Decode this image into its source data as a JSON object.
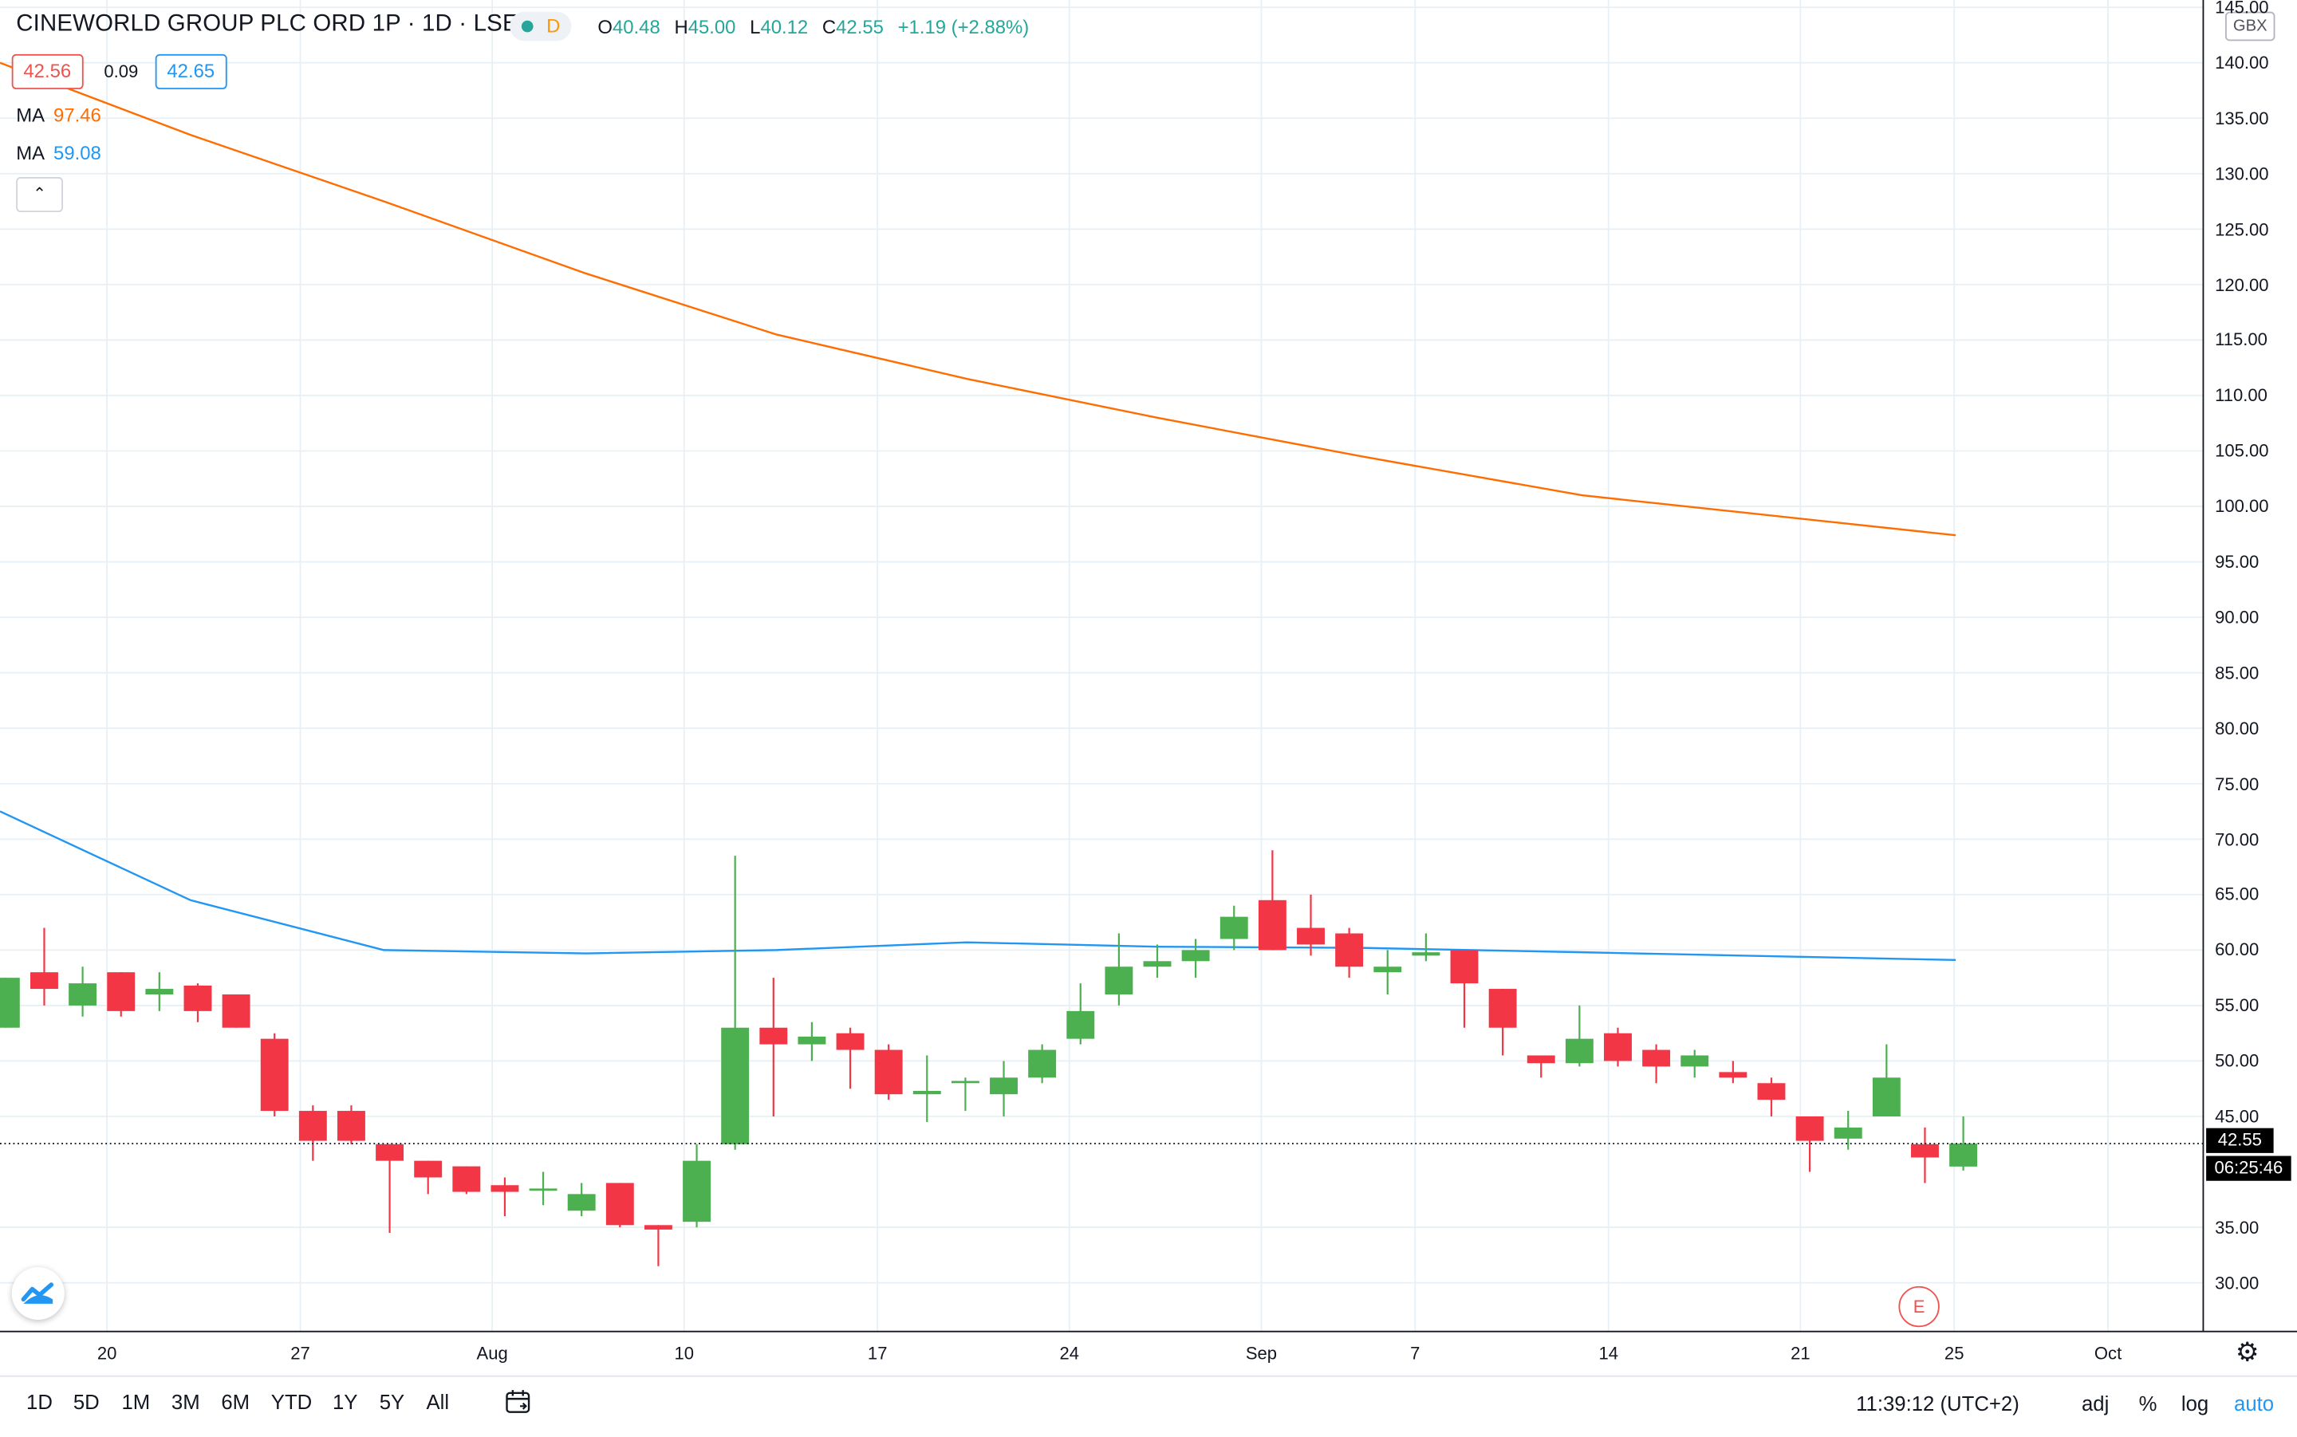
{
  "header": {
    "title": "CINEWORLD GROUP PLC ORD 1P · 1D · LSE",
    "badge_letter": "D",
    "ohlc": {
      "o_label": "O",
      "o_value": "40.48",
      "h_label": "H",
      "h_value": "45.00",
      "l_label": "L",
      "l_value": "40.12",
      "c_label": "C",
      "c_value": "42.55",
      "change": "+1.19 (+2.88%)"
    },
    "bid": "42.56",
    "spread": "0.09",
    "ask": "42.65",
    "indicators": [
      {
        "label": "MA",
        "value": "97.46",
        "color": "#ff6d00"
      },
      {
        "label": "MA",
        "value": "59.08",
        "color": "#2196f3"
      }
    ],
    "collapse_glyph": "⌃"
  },
  "price_axis": {
    "currency": "GBX",
    "ticks": [
      "145.00",
      "140.00",
      "135.00",
      "130.00",
      "125.00",
      "120.00",
      "115.00",
      "110.00",
      "105.00",
      "100.00",
      "95.00",
      "90.00",
      "85.00",
      "80.00",
      "75.00",
      "70.00",
      "65.00",
      "60.00",
      "55.00",
      "50.00",
      "45.00",
      "35.00",
      "30.00"
    ],
    "last_price": "42.55",
    "countdown": "06:25:46"
  },
  "time_axis": {
    "labels": [
      "20",
      "27",
      "Aug",
      "10",
      "17",
      "24",
      "Sep",
      "7",
      "14",
      "21",
      "25",
      "Oct"
    ]
  },
  "markers": {
    "earnings": "E"
  },
  "bottom_bar": {
    "ranges": [
      "1D",
      "5D",
      "1M",
      "3M",
      "6M",
      "YTD",
      "1Y",
      "5Y",
      "All"
    ],
    "clock": "11:39:12 (UTC+2)",
    "options": [
      "adj",
      "%",
      "log",
      "auto"
    ]
  },
  "colors": {
    "up": "#4caf50",
    "down": "#f23645",
    "ma_long": "#ff6d00",
    "ma_short": "#2196f3",
    "grid": "#e8f0f5"
  },
  "chart_data": {
    "type": "candlestick",
    "title": "CINEWORLD GROUP PLC ORD 1P · 1D · LSE",
    "ylim": [
      25.5,
      146
    ],
    "y_ticks": [
      145,
      140,
      135,
      130,
      125,
      120,
      115,
      110,
      105,
      100,
      95,
      90,
      85,
      80,
      75,
      70,
      65,
      60,
      55,
      50,
      45,
      35,
      30
    ],
    "x_labels": [
      "20",
      "27",
      "Aug",
      "10",
      "17",
      "24",
      "Sep",
      "7",
      "14",
      "21",
      "25",
      "Oct"
    ],
    "candles": [
      {
        "o": 53.0,
        "h": 57.5,
        "l": 53.0,
        "c": 57.5
      },
      {
        "o": 58.0,
        "h": 62.0,
        "l": 55.0,
        "c": 56.5
      },
      {
        "o": 55.0,
        "h": 58.5,
        "l": 54.0,
        "c": 57.0
      },
      {
        "o": 58.0,
        "h": 58.0,
        "l": 54.0,
        "c": 54.5
      },
      {
        "o": 56.0,
        "h": 58.0,
        "l": 54.5,
        "c": 56.5
      },
      {
        "o": 56.8,
        "h": 57.0,
        "l": 53.5,
        "c": 54.5
      },
      {
        "o": 56.0,
        "h": 56.0,
        "l": 53.0,
        "c": 53.0
      },
      {
        "o": 52.0,
        "h": 52.5,
        "l": 45.0,
        "c": 45.5
      },
      {
        "o": 45.5,
        "h": 46.0,
        "l": 41.0,
        "c": 42.8
      },
      {
        "o": 45.5,
        "h": 46.0,
        "l": 42.5,
        "c": 42.8
      },
      {
        "o": 42.5,
        "h": 42.5,
        "l": 34.5,
        "c": 41.0
      },
      {
        "o": 41.0,
        "h": 41.0,
        "l": 38.0,
        "c": 39.5
      },
      {
        "o": 40.5,
        "h": 40.5,
        "l": 38.0,
        "c": 38.2
      },
      {
        "o": 38.8,
        "h": 39.5,
        "l": 36.0,
        "c": 38.2
      },
      {
        "o": 38.5,
        "h": 40.0,
        "l": 37.0,
        "c": 38.5
      },
      {
        "o": 36.5,
        "h": 39.0,
        "l": 36.0,
        "c": 38.0
      },
      {
        "o": 39.0,
        "h": 39.0,
        "l": 35.0,
        "c": 35.2
      },
      {
        "o": 35.2,
        "h": 35.2,
        "l": 31.5,
        "c": 34.8
      },
      {
        "o": 35.5,
        "h": 42.5,
        "l": 35.0,
        "c": 41.0
      },
      {
        "o": 42.5,
        "h": 68.5,
        "l": 42.0,
        "c": 53.0
      },
      {
        "o": 53.0,
        "h": 57.5,
        "l": 45.0,
        "c": 51.5
      },
      {
        "o": 51.5,
        "h": 53.5,
        "l": 50.0,
        "c": 52.2
      },
      {
        "o": 52.5,
        "h": 53.0,
        "l": 47.5,
        "c": 51.0
      },
      {
        "o": 51.0,
        "h": 51.5,
        "l": 46.5,
        "c": 47.0
      },
      {
        "o": 47.0,
        "h": 50.5,
        "l": 44.5,
        "c": 47.3
      },
      {
        "o": 48.0,
        "h": 48.5,
        "l": 45.5,
        "c": 48.2
      },
      {
        "o": 47.0,
        "h": 50.0,
        "l": 45.0,
        "c": 48.5
      },
      {
        "o": 48.5,
        "h": 51.5,
        "l": 48.0,
        "c": 51.0
      },
      {
        "o": 52.0,
        "h": 57.0,
        "l": 51.5,
        "c": 54.5
      },
      {
        "o": 56.0,
        "h": 61.5,
        "l": 55.0,
        "c": 58.5
      },
      {
        "o": 58.5,
        "h": 60.5,
        "l": 57.5,
        "c": 59.0
      },
      {
        "o": 59.0,
        "h": 61.0,
        "l": 57.5,
        "c": 60.0
      },
      {
        "o": 61.0,
        "h": 64.0,
        "l": 60.0,
        "c": 63.0
      },
      {
        "o": 64.5,
        "h": 69.0,
        "l": 60.0,
        "c": 60.0
      },
      {
        "o": 62.0,
        "h": 65.0,
        "l": 59.5,
        "c": 60.5
      },
      {
        "o": 61.5,
        "h": 62.0,
        "l": 57.5,
        "c": 58.5
      },
      {
        "o": 58.0,
        "h": 60.0,
        "l": 56.0,
        "c": 58.5
      },
      {
        "o": 59.5,
        "h": 61.5,
        "l": 59.0,
        "c": 59.8
      },
      {
        "o": 60.0,
        "h": 60.0,
        "l": 53.0,
        "c": 57.0
      },
      {
        "o": 56.5,
        "h": 56.5,
        "l": 50.5,
        "c": 53.0
      },
      {
        "o": 50.5,
        "h": 50.5,
        "l": 48.5,
        "c": 49.8
      },
      {
        "o": 49.8,
        "h": 55.0,
        "l": 49.5,
        "c": 52.0
      },
      {
        "o": 52.5,
        "h": 53.0,
        "l": 49.5,
        "c": 50.0
      },
      {
        "o": 51.0,
        "h": 51.5,
        "l": 48.0,
        "c": 49.5
      },
      {
        "o": 49.5,
        "h": 51.0,
        "l": 48.5,
        "c": 50.5
      },
      {
        "o": 49.0,
        "h": 50.0,
        "l": 48.0,
        "c": 48.5
      },
      {
        "o": 48.0,
        "h": 48.5,
        "l": 45.0,
        "c": 46.5
      },
      {
        "o": 45.0,
        "h": 45.0,
        "l": 40.0,
        "c": 42.8
      },
      {
        "o": 43.0,
        "h": 45.5,
        "l": 42.0,
        "c": 44.0
      },
      {
        "o": 45.0,
        "h": 51.5,
        "l": 45.0,
        "c": 48.5
      },
      {
        "o": 42.5,
        "h": 44.0,
        "l": 39.0,
        "c": 41.3
      },
      {
        "o": 40.48,
        "h": 45.0,
        "l": 40.12,
        "c": 42.55
      }
    ],
    "series": [
      {
        "name": "MA",
        "value": 97.46,
        "values": [
          140,
          133.5,
          127.5,
          121,
          115.5,
          111.5,
          108,
          104.5,
          101,
          97.4
        ]
      },
      {
        "name": "MA",
        "value": 59.08,
        "values": [
          72.5,
          64.5,
          60,
          59.7,
          60,
          60.7,
          60.3,
          60.2,
          59.8,
          59.1
        ]
      }
    ]
  }
}
